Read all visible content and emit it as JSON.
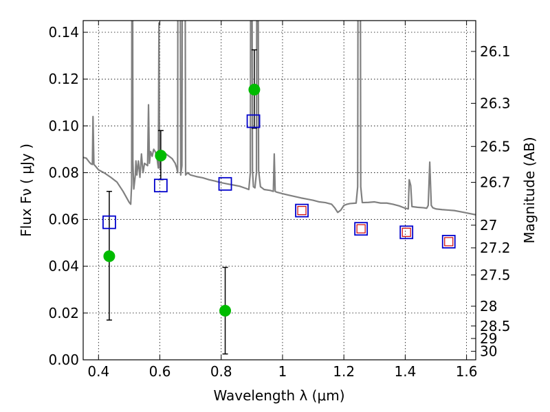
{
  "chart_data": {
    "type": "scatter",
    "title": "",
    "xlabel": "Wavelength  λ (μm)",
    "ylabel": "Flux  Fν  ( μJy )",
    "ylabel_right": "Magnitude (AB)",
    "xlim": [
      0.35,
      1.63
    ],
    "ylim": [
      0.0,
      0.145
    ],
    "grid": true,
    "x_ticks": [
      {
        "value": 0.4,
        "label": "0.4"
      },
      {
        "value": 0.6,
        "label": "0.6"
      },
      {
        "value": 0.8,
        "label": "0.8"
      },
      {
        "value": 1.0,
        "label": "1"
      },
      {
        "value": 1.2,
        "label": "1.2"
      },
      {
        "value": 1.4,
        "label": "1.4"
      },
      {
        "value": 1.6,
        "label": "1.6"
      }
    ],
    "y_ticks": [
      {
        "value": 0.0,
        "label": "0.00"
      },
      {
        "value": 0.02,
        "label": "0.02"
      },
      {
        "value": 0.04,
        "label": "0.04"
      },
      {
        "value": 0.06,
        "label": "0.06"
      },
      {
        "value": 0.08,
        "label": "0.08"
      },
      {
        "value": 0.1,
        "label": "0.10"
      },
      {
        "value": 0.12,
        "label": "0.12"
      },
      {
        "value": 0.14,
        "label": "0.14"
      }
    ],
    "right_ticks": [
      {
        "mag": 26.1,
        "label": "26.1"
      },
      {
        "mag": 26.3,
        "label": "26.3"
      },
      {
        "mag": 26.5,
        "label": "26.5"
      },
      {
        "mag": 26.7,
        "label": "26.7"
      },
      {
        "mag": 27.0,
        "label": "27"
      },
      {
        "mag": 27.2,
        "label": "27.2"
      },
      {
        "mag": 27.5,
        "label": "27.5"
      },
      {
        "mag": 28.0,
        "label": "28"
      },
      {
        "mag": 28.5,
        "label": "28.5"
      },
      {
        "mag": 29.0,
        "label": "29"
      },
      {
        "mag": 30.0,
        "label": "30"
      }
    ],
    "colors": {
      "model_spectrum": "#808080",
      "observed": "#00bb00",
      "model_photometry": "#0000cc",
      "model_photometry_inner": "#cc0000",
      "errorbar": "#000000"
    },
    "series": [
      {
        "kind": "line",
        "points": [
          [
            0.35,
            0.0865
          ],
          [
            0.36,
            0.0862
          ],
          [
            0.37,
            0.0845
          ],
          [
            0.375,
            0.0838
          ],
          [
            0.38,
            0.0835
          ],
          [
            0.382,
            0.104
          ],
          [
            0.385,
            0.0835
          ],
          [
            0.39,
            0.0828
          ],
          [
            0.4,
            0.0812
          ],
          [
            0.42,
            0.0798
          ],
          [
            0.44,
            0.078
          ],
          [
            0.46,
            0.076
          ],
          [
            0.48,
            0.072
          ],
          [
            0.5,
            0.0673
          ],
          [
            0.505,
            0.0665
          ],
          [
            0.508,
            0.075
          ],
          [
            0.51,
            0.3
          ],
          [
            0.512,
            0.085
          ],
          [
            0.515,
            0.073
          ],
          [
            0.52,
            0.079
          ],
          [
            0.522,
            0.085
          ],
          [
            0.525,
            0.079
          ],
          [
            0.53,
            0.085
          ],
          [
            0.535,
            0.078
          ],
          [
            0.54,
            0.088
          ],
          [
            0.545,
            0.08
          ],
          [
            0.55,
            0.084
          ],
          [
            0.56,
            0.083
          ],
          [
            0.563,
            0.109
          ],
          [
            0.566,
            0.084
          ],
          [
            0.57,
            0.089
          ],
          [
            0.575,
            0.087
          ],
          [
            0.58,
            0.09
          ],
          [
            0.585,
            0.089
          ],
          [
            0.59,
            0.087
          ],
          [
            0.595,
            0.082
          ],
          [
            0.597,
            0.144
          ],
          [
            0.599,
            0.082
          ],
          [
            0.6,
            0.086
          ],
          [
            0.61,
            0.087
          ],
          [
            0.62,
            0.088
          ],
          [
            0.63,
            0.087
          ],
          [
            0.64,
            0.086
          ],
          [
            0.65,
            0.084
          ],
          [
            0.655,
            0.082
          ],
          [
            0.658,
            0.08
          ],
          [
            0.66,
            0.3
          ],
          [
            0.664,
            0.3
          ],
          [
            0.668,
            0.079
          ],
          [
            0.672,
            0.083
          ],
          [
            0.675,
            0.3
          ],
          [
            0.68,
            0.3
          ],
          [
            0.684,
            0.079
          ],
          [
            0.69,
            0.08
          ],
          [
            0.7,
            0.079
          ],
          [
            0.72,
            0.0783
          ],
          [
            0.74,
            0.0778
          ],
          [
            0.76,
            0.077
          ],
          [
            0.78,
            0.0764
          ],
          [
            0.8,
            0.0757
          ],
          [
            0.82,
            0.0752
          ],
          [
            0.84,
            0.0747
          ],
          [
            0.86,
            0.0742
          ],
          [
            0.88,
            0.0733
          ],
          [
            0.89,
            0.0728
          ],
          [
            0.895,
            0.08
          ],
          [
            0.898,
            0.3
          ],
          [
            0.902,
            0.081
          ],
          [
            0.905,
            0.074
          ],
          [
            0.91,
            0.0735
          ],
          [
            0.915,
            0.08
          ],
          [
            0.918,
            0.3
          ],
          [
            0.922,
            0.081
          ],
          [
            0.928,
            0.074
          ],
          [
            0.94,
            0.0728
          ],
          [
            0.96,
            0.0724
          ],
          [
            0.97,
            0.072
          ],
          [
            0.973,
            0.088
          ],
          [
            0.976,
            0.072
          ],
          [
            0.98,
            0.0717
          ],
          [
            1.0,
            0.071
          ],
          [
            1.02,
            0.0704
          ],
          [
            1.04,
            0.0698
          ],
          [
            1.06,
            0.0692
          ],
          [
            1.08,
            0.0687
          ],
          [
            1.1,
            0.0682
          ],
          [
            1.12,
            0.0675
          ],
          [
            1.14,
            0.0672
          ],
          [
            1.16,
            0.0665
          ],
          [
            1.17,
            0.065
          ],
          [
            1.18,
            0.063
          ],
          [
            1.19,
            0.064
          ],
          [
            1.2,
            0.066
          ],
          [
            1.21,
            0.0665
          ],
          [
            1.22,
            0.0668
          ],
          [
            1.24,
            0.067
          ],
          [
            1.245,
            0.074
          ],
          [
            1.248,
            0.3
          ],
          [
            1.252,
            0.3
          ],
          [
            1.255,
            0.074
          ],
          [
            1.26,
            0.0672
          ],
          [
            1.28,
            0.0673
          ],
          [
            1.3,
            0.0675
          ],
          [
            1.32,
            0.067
          ],
          [
            1.34,
            0.067
          ],
          [
            1.36,
            0.0665
          ],
          [
            1.38,
            0.0658
          ],
          [
            1.4,
            0.0648
          ],
          [
            1.41,
            0.0645
          ],
          [
            1.413,
            0.077
          ],
          [
            1.418,
            0.0745
          ],
          [
            1.422,
            0.0655
          ],
          [
            1.44,
            0.0652
          ],
          [
            1.46,
            0.065
          ],
          [
            1.47,
            0.0648
          ],
          [
            1.475,
            0.066
          ],
          [
            1.48,
            0.0845
          ],
          [
            1.485,
            0.066
          ],
          [
            1.49,
            0.065
          ],
          [
            1.5,
            0.0645
          ],
          [
            1.52,
            0.0642
          ],
          [
            1.54,
            0.064
          ],
          [
            1.56,
            0.0638
          ],
          [
            1.58,
            0.0633
          ],
          [
            1.6,
            0.0628
          ],
          [
            1.63,
            0.062
          ]
        ]
      },
      {
        "kind": "observed_with_errors",
        "points": [
          {
            "x": 0.435,
            "y": 0.0443,
            "lo": 0.017,
            "hi": 0.072
          },
          {
            "x": 0.603,
            "y": 0.0873,
            "lo": 0.077,
            "hi": 0.098
          },
          {
            "x": 0.813,
            "y": 0.021,
            "lo": 0.0025,
            "hi": 0.0395
          },
          {
            "x": 0.908,
            "y": 0.1155,
            "lo": 0.099,
            "hi": 0.1325
          }
        ]
      },
      {
        "kind": "model_photometry",
        "points": [
          {
            "x": 0.435,
            "y": 0.0588
          },
          {
            "x": 0.603,
            "y": 0.0745
          },
          {
            "x": 0.813,
            "y": 0.0752
          },
          {
            "x": 0.905,
            "y": 0.102
          }
        ]
      },
      {
        "kind": "model_photometry_inner",
        "points": [
          {
            "x": 1.063,
            "y": 0.0638
          },
          {
            "x": 1.256,
            "y": 0.056
          },
          {
            "x": 1.404,
            "y": 0.0545
          },
          {
            "x": 1.542,
            "y": 0.0505
          }
        ]
      }
    ]
  }
}
